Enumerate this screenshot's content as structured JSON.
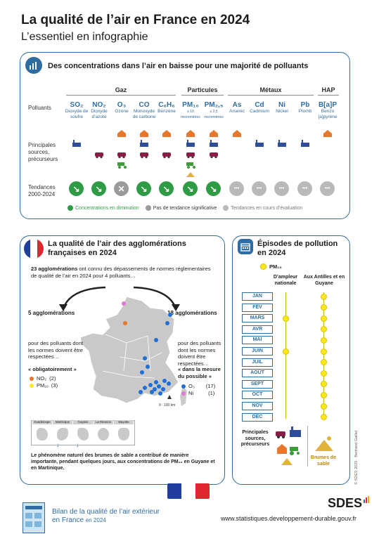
{
  "header": {
    "title": "La qualité de l’air en France en 2024",
    "subtitle": "L’essentiel en infographie"
  },
  "concentrations": {
    "title": "Des concentrations dans l’air en baisse pour une majorité de polluants",
    "groups": [
      "Gaz",
      "Particules",
      "Métaux",
      "HAP"
    ],
    "row_labels": {
      "pollutants": "Polluants",
      "sources": "Principales sources, précurseurs",
      "trends": "Tendances 2000-2024"
    },
    "pollutants": [
      {
        "symbol": "SO₂",
        "name": "Dioxyde de soufre",
        "trend": "down"
      },
      {
        "symbol": "NO₂",
        "name": "Dioxyde d’azote",
        "trend": "down"
      },
      {
        "symbol": "O₃",
        "name": "Ozone",
        "trend": "none"
      },
      {
        "symbol": "CO",
        "name": "Monoxyde de carbone",
        "trend": "down"
      },
      {
        "symbol": "C₆H₆",
        "name": "Benzène",
        "trend": "down"
      },
      {
        "symbol": "PM₁₀",
        "name": "≤ 10 micromètres",
        "trend": "down"
      },
      {
        "symbol": "PM₂,₅",
        "name": "≤ 2,5 micromètres",
        "trend": "down"
      },
      {
        "symbol": "As",
        "name": "Arsenic",
        "trend": "eval"
      },
      {
        "symbol": "Cd",
        "name": "Cadmium",
        "trend": "eval"
      },
      {
        "symbol": "Ni",
        "name": "Nickel",
        "trend": "eval"
      },
      {
        "symbol": "Pb",
        "name": "Plomb",
        "trend": "eval"
      },
      {
        "symbol": "B[a]P",
        "name": "Benzo [a]pyrène",
        "trend": "eval"
      }
    ],
    "legend": {
      "down": "Concentrations en diminution",
      "none": "Pas de tendance significative",
      "eval": "Tendances en cours d’évaluation"
    },
    "colors": {
      "down": "#2e9c45",
      "none": "#9a9a9a",
      "eval": "#b9b9b9",
      "accent": "#2e6da4"
    }
  },
  "agglomerations": {
    "title": "La qualité de l’air des agglomérations françaises en 2024",
    "intro_bold": "23 agglomérations",
    "intro_rest": " ont connu des dépassements de normes réglementaires de qualité de l’air en 2024 pour 4 polluants…",
    "left_count": "5 agglomérations",
    "right_count": "18 agglomérations",
    "left_text": "pour des polluants dont les normes doivent être respectées…",
    "left_quote": "« obligatoirement »",
    "left_items": [
      {
        "label": "NO₂",
        "count": "(2)",
        "color": "#e8772e"
      },
      {
        "label": "PM₁₀",
        "count": "(3)",
        "color": "#ffe71a"
      }
    ],
    "right_text": "pour des polluants dont les normes doivent être respectées…",
    "right_quote": "« dans la mesure du possible »",
    "right_items": [
      {
        "label": "O₃",
        "count": "(17)",
        "color": "#1f6fd6"
      },
      {
        "label": "Ni",
        "count": "(1)",
        "color": "#e07ad0"
      }
    ],
    "scale": "0   100 km",
    "territories": [
      "Guadeloupe",
      "Martinique",
      "Guyane",
      "La Réunion",
      "Mayotte"
    ],
    "note": "Le phénomène naturel des brumes de sable a contribué de manière importante, pendant quelques jours, aux concentrations de PM₁₀ en Guyane et en Martinique."
  },
  "episodes": {
    "title": "Épisodes de pollution en 2024",
    "pollutant": "PM₁₀",
    "col_national": "D’ampleur nationale",
    "col_overseas": "Aux Antilles et en Guyane",
    "months": [
      {
        "label": "JAN",
        "national": false,
        "overseas": true
      },
      {
        "label": "FÉV",
        "national": false,
        "overseas": true
      },
      {
        "label": "MARS",
        "national": true,
        "overseas": true
      },
      {
        "label": "AVR",
        "national": false,
        "overseas": true
      },
      {
        "label": "MAI",
        "national": false,
        "overseas": true
      },
      {
        "label": "JUIN",
        "national": true,
        "overseas": true
      },
      {
        "label": "JUIL",
        "national": false,
        "overseas": true
      },
      {
        "label": "AOÛT",
        "national": false,
        "overseas": true
      },
      {
        "label": "SEPT",
        "national": false,
        "overseas": true
      },
      {
        "label": "OCT",
        "national": false,
        "overseas": true
      },
      {
        "label": "NOV",
        "national": false,
        "overseas": true
      },
      {
        "label": "DÉC",
        "national": false,
        "overseas": true
      }
    ],
    "sources_label": "Principales sources, précurseurs",
    "sand_label": "Brumes de sable"
  },
  "footer": {
    "report_title": "Bilan de la qualité de l’air extérieur",
    "report_sub_1": "en France",
    "report_sub_2": "en 2024",
    "brand": "SDES",
    "url": "www.statistiques.developpement-durable.gouv.fr",
    "credit": "© SDES 2025 · Bertrand Gaillet"
  }
}
